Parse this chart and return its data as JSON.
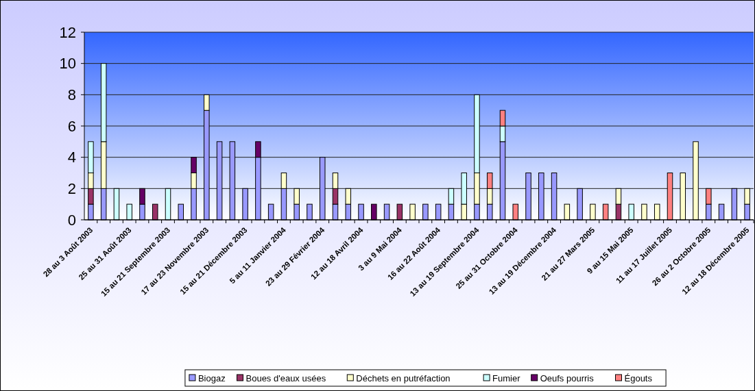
{
  "chart_data": {
    "type": "bar",
    "stacked": true,
    "grid": "y",
    "legend": "bottom",
    "categories": [
      "28 au 3 Août 2003",
      null,
      null,
      "25 au 31 Août 2003",
      null,
      null,
      "15 au 21 Septembre 2003",
      null,
      null,
      "17 au 23 Novembre 2003",
      null,
      null,
      "15 au 21 Décembre 2003",
      null,
      null,
      "5 au 11 Janvier 2004",
      null,
      null,
      "23 au 29 Février 2004",
      null,
      null,
      "12 au 18 Avril 2004",
      null,
      null,
      "3 au 9 Mai 2004",
      null,
      null,
      "16 au 22 Août 2004",
      null,
      null,
      "13 au 19 Septembre 2004",
      null,
      null,
      "25 au 31 Octobre 2004",
      null,
      null,
      "13 au 19 Décembre 2004",
      null,
      null,
      "21 au 27 Mars 2005",
      null,
      null,
      "9 au 15 Mai 2005",
      null,
      null,
      "11 au 17 Juillet 2005",
      null,
      null,
      "26 au 2 Octobre 2005",
      null,
      null,
      "12 au 18 Décembre 2005"
    ],
    "ylim": [
      0,
      12
    ],
    "yticks": [
      0,
      2,
      4,
      6,
      8,
      10,
      12
    ],
    "series": [
      {
        "name": "Biogaz",
        "color": "#9999ff",
        "values": [
          1,
          2,
          null,
          null,
          1,
          null,
          null,
          1,
          2,
          7,
          5,
          5,
          2,
          4,
          1,
          2,
          1,
          1,
          4,
          1,
          1,
          1,
          null,
          1,
          null,
          null,
          1,
          1,
          1,
          null,
          1,
          1,
          5,
          null,
          3,
          3,
          3,
          null,
          2,
          null,
          null,
          null,
          null,
          null,
          null,
          null,
          null,
          null,
          1,
          1,
          2,
          1
        ]
      },
      {
        "name": "Boues d'eaux usées",
        "color": "#993366",
        "values": [
          1,
          null,
          null,
          null,
          null,
          1,
          null,
          null,
          null,
          null,
          null,
          null,
          null,
          null,
          null,
          null,
          null,
          null,
          null,
          1,
          null,
          null,
          null,
          null,
          1,
          null,
          null,
          null,
          null,
          null,
          null,
          null,
          null,
          null,
          null,
          null,
          null,
          null,
          null,
          null,
          null,
          1,
          null,
          null,
          null,
          null,
          null,
          null,
          null,
          null,
          null,
          null
        ]
      },
      {
        "name": "Déchets en putréfaction",
        "color": "#ffffcc",
        "values": [
          1,
          3,
          null,
          null,
          null,
          null,
          null,
          null,
          1,
          1,
          null,
          null,
          null,
          null,
          null,
          1,
          1,
          null,
          null,
          1,
          1,
          null,
          null,
          null,
          null,
          1,
          null,
          null,
          null,
          1,
          2,
          1,
          null,
          null,
          null,
          null,
          null,
          1,
          null,
          1,
          null,
          1,
          null,
          1,
          1,
          null,
          3,
          5,
          null,
          null,
          null,
          1
        ]
      },
      {
        "name": "Fumier",
        "color": "#ccffff",
        "values": [
          2,
          5,
          2,
          1,
          null,
          null,
          2,
          null,
          null,
          null,
          null,
          null,
          null,
          null,
          null,
          null,
          null,
          null,
          null,
          null,
          null,
          null,
          null,
          null,
          null,
          null,
          null,
          null,
          1,
          2,
          5,
          null,
          1,
          null,
          null,
          null,
          null,
          null,
          null,
          null,
          null,
          null,
          1,
          null,
          null,
          null,
          null,
          null,
          null,
          null,
          null,
          null
        ]
      },
      {
        "name": "Oeufs pourris",
        "color": "#660066",
        "values": [
          null,
          null,
          null,
          null,
          1,
          null,
          null,
          null,
          1,
          null,
          null,
          null,
          null,
          1,
          null,
          null,
          null,
          null,
          null,
          null,
          null,
          null,
          1,
          null,
          null,
          null,
          null,
          null,
          null,
          null,
          null,
          null,
          null,
          null,
          null,
          null,
          null,
          null,
          null,
          null,
          null,
          null,
          null,
          null,
          null,
          null,
          null,
          null,
          null,
          null,
          null,
          null
        ]
      },
      {
        "name": "Égouts",
        "color": "#ff8080",
        "values": [
          null,
          null,
          null,
          null,
          null,
          null,
          null,
          null,
          null,
          null,
          null,
          null,
          null,
          null,
          null,
          null,
          null,
          null,
          null,
          null,
          null,
          null,
          null,
          null,
          null,
          null,
          null,
          null,
          null,
          null,
          null,
          1,
          1,
          1,
          null,
          null,
          null,
          null,
          null,
          null,
          1,
          null,
          null,
          null,
          null,
          3,
          null,
          null,
          1,
          null,
          null,
          null
        ]
      }
    ]
  }
}
